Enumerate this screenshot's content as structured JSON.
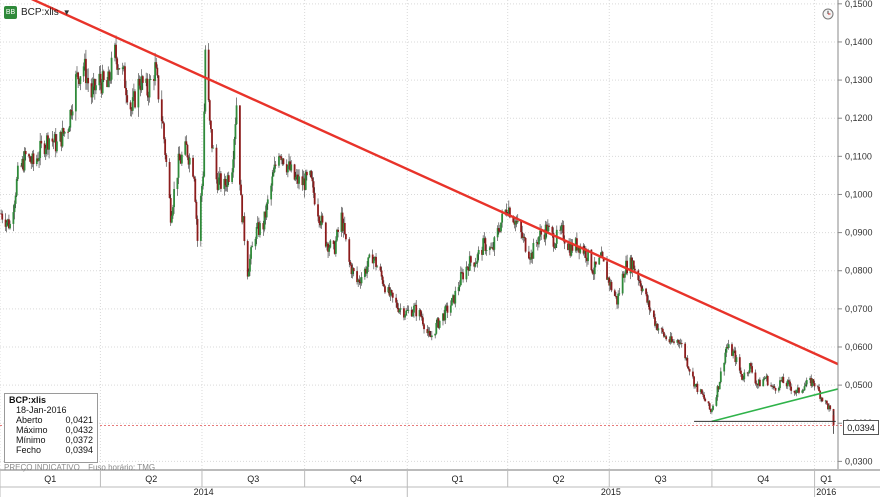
{
  "ticker": {
    "label": "BCP:xlis",
    "logo": "BB"
  },
  "info_box": {
    "title": "BCP:xlis",
    "date": "18-Jan-2016",
    "rows": [
      {
        "label": "Aberto",
        "value": "0,0421"
      },
      {
        "label": "Máximo",
        "value": "0,0432"
      },
      {
        "label": "Mínimo",
        "value": "0,0372"
      },
      {
        "label": "Fecho",
        "value": "0,0394"
      }
    ]
  },
  "footer": {
    "price_note": "PREÇO INDICATIVO",
    "timezone_note": "Fuso horário: TMG"
  },
  "last_price_label": "0,0394",
  "colors": {
    "trend_red": "#e8332a",
    "trend_green": "#2fb34a",
    "candle_up": "#2f8a3a",
    "candle_down": "#8c1c1c",
    "last_price_line": "#e05050"
  },
  "icons": {
    "logo": "bloomberg-logo-icon",
    "clock": "clock-icon",
    "caret": "caret-down-icon"
  },
  "chart_data": {
    "type": "candlestick",
    "y_axis": {
      "ticks": [
        "0,1500",
        "0,1400",
        "0,1300",
        "0,1200",
        "0,1100",
        "0,1000",
        "0,0900",
        "0,0800",
        "0,0700",
        "0,0600",
        "0,0500",
        "0,0400",
        "0,0300"
      ],
      "tick_values": [
        0.15,
        0.14,
        0.13,
        0.12,
        0.11,
        0.1,
        0.09,
        0.08,
        0.07,
        0.06,
        0.05,
        0.04,
        0.03
      ],
      "range": [
        0.028,
        0.151
      ]
    },
    "x_axis": {
      "quarters": [
        "Q1",
        "Q2",
        "Q3",
        "Q4",
        "Q1",
        "Q2",
        "Q3",
        "Q4",
        "Q1"
      ],
      "years": [
        "2014",
        "2015",
        "2016"
      ],
      "range": [
        "2014-01-01",
        "2016-01-22"
      ]
    },
    "series": [
      {
        "points": [
          [
            "2014-01-02",
            0.095
          ],
          [
            "2014-01-10",
            0.092
          ],
          [
            "2014-01-17",
            0.105
          ],
          [
            "2014-01-24",
            0.11
          ],
          [
            "2014-01-31",
            0.108
          ],
          [
            "2014-02-07",
            0.112
          ],
          [
            "2014-02-14",
            0.115
          ],
          [
            "2014-02-21",
            0.113
          ],
          [
            "2014-03-03",
            0.118
          ],
          [
            "2014-03-10",
            0.13
          ],
          [
            "2014-03-17",
            0.134
          ],
          [
            "2014-03-24",
            0.126
          ],
          [
            "2014-03-31",
            0.13
          ],
          [
            "2014-04-07",
            0.128
          ],
          [
            "2014-04-14",
            0.137
          ],
          [
            "2014-04-22",
            0.131
          ],
          [
            "2014-04-29",
            0.122
          ],
          [
            "2014-05-06",
            0.13
          ],
          [
            "2014-05-13",
            0.127
          ],
          [
            "2014-05-20",
            0.133
          ],
          [
            "2014-05-27",
            0.118
          ],
          [
            "2014-06-03",
            0.095
          ],
          [
            "2014-06-10",
            0.108
          ],
          [
            "2014-06-17",
            0.112
          ],
          [
            "2014-06-24",
            0.106
          ],
          [
            "2014-06-27",
            0.088
          ],
          [
            "2014-07-02",
            0.106
          ],
          [
            "2014-07-04",
            0.138
          ],
          [
            "2014-07-08",
            0.118
          ],
          [
            "2014-07-14",
            0.104
          ],
          [
            "2014-07-21",
            0.102
          ],
          [
            "2014-07-28",
            0.108
          ],
          [
            "2014-08-01",
            0.124
          ],
          [
            "2014-08-05",
            0.098
          ],
          [
            "2014-08-11",
            0.08
          ],
          [
            "2014-08-18",
            0.09
          ],
          [
            "2014-08-25",
            0.092
          ],
          [
            "2014-09-01",
            0.102
          ],
          [
            "2014-09-08",
            0.112
          ],
          [
            "2014-09-15",
            0.108
          ],
          [
            "2014-09-22",
            0.104
          ],
          [
            "2014-09-29",
            0.103
          ],
          [
            "2014-10-06",
            0.104
          ],
          [
            "2014-10-13",
            0.096
          ],
          [
            "2014-10-20",
            0.088
          ],
          [
            "2014-10-27",
            0.085
          ],
          [
            "2014-11-03",
            0.094
          ],
          [
            "2014-11-10",
            0.082
          ],
          [
            "2014-11-17",
            0.077
          ],
          [
            "2014-11-24",
            0.08
          ],
          [
            "2014-12-01",
            0.084
          ],
          [
            "2014-12-08",
            0.079
          ],
          [
            "2014-12-15",
            0.074
          ],
          [
            "2014-12-22",
            0.071
          ],
          [
            "2014-12-31",
            0.069
          ],
          [
            "2015-01-07",
            0.07
          ],
          [
            "2015-01-14",
            0.068
          ],
          [
            "2015-01-21",
            0.062
          ],
          [
            "2015-01-28",
            0.066
          ],
          [
            "2015-02-04",
            0.069
          ],
          [
            "2015-02-11",
            0.072
          ],
          [
            "2015-02-18",
            0.078
          ],
          [
            "2015-02-25",
            0.082
          ],
          [
            "2015-03-04",
            0.083
          ],
          [
            "2015-03-11",
            0.087
          ],
          [
            "2015-03-18",
            0.085
          ],
          [
            "2015-03-25",
            0.092
          ],
          [
            "2015-04-01",
            0.097
          ],
          [
            "2015-04-08",
            0.093
          ],
          [
            "2015-04-15",
            0.088
          ],
          [
            "2015-04-22",
            0.084
          ],
          [
            "2015-04-29",
            0.089
          ],
          [
            "2015-05-06",
            0.091
          ],
          [
            "2015-05-13",
            0.088
          ],
          [
            "2015-05-20",
            0.09
          ],
          [
            "2015-05-27",
            0.086
          ],
          [
            "2015-06-03",
            0.087
          ],
          [
            "2015-06-10",
            0.085
          ],
          [
            "2015-06-17",
            0.08
          ],
          [
            "2015-06-24",
            0.083
          ],
          [
            "2015-07-01",
            0.077
          ],
          [
            "2015-07-08",
            0.072
          ],
          [
            "2015-07-15",
            0.081
          ],
          [
            "2015-07-22",
            0.082
          ],
          [
            "2015-07-29",
            0.077
          ],
          [
            "2015-08-05",
            0.071
          ],
          [
            "2015-08-12",
            0.066
          ],
          [
            "2015-08-19",
            0.063
          ],
          [
            "2015-08-26",
            0.061
          ],
          [
            "2015-09-02",
            0.062
          ],
          [
            "2015-09-09",
            0.056
          ],
          [
            "2015-09-16",
            0.05
          ],
          [
            "2015-09-23",
            0.047
          ],
          [
            "2015-09-30",
            0.043
          ],
          [
            "2015-10-07",
            0.05
          ],
          [
            "2015-10-14",
            0.06
          ],
          [
            "2015-10-21",
            0.058
          ],
          [
            "2015-10-28",
            0.052
          ],
          [
            "2015-11-04",
            0.055
          ],
          [
            "2015-11-11",
            0.05
          ],
          [
            "2015-11-18",
            0.052
          ],
          [
            "2015-11-25",
            0.049
          ],
          [
            "2015-12-02",
            0.051
          ],
          [
            "2015-12-09",
            0.05
          ],
          [
            "2015-12-16",
            0.048
          ],
          [
            "2015-12-23",
            0.05
          ],
          [
            "2015-12-31",
            0.051
          ],
          [
            "2016-01-07",
            0.047
          ],
          [
            "2016-01-14",
            0.044
          ],
          [
            "2016-01-18",
            0.0394
          ]
        ]
      }
    ],
    "trendlines": [
      {
        "color": "red",
        "from": [
          "2014-01-20",
          0.1525
        ],
        "to": [
          "2016-01-22",
          0.0555
        ]
      },
      {
        "color": "green",
        "from": [
          "2015-10-01",
          0.0405
        ],
        "to": [
          "2016-01-22",
          0.049
        ]
      },
      {
        "color": "dark",
        "from": [
          "2015-09-15",
          0.0405
        ],
        "to": [
          "2016-01-20",
          0.0405
        ]
      }
    ],
    "last_price": 0.0394
  }
}
